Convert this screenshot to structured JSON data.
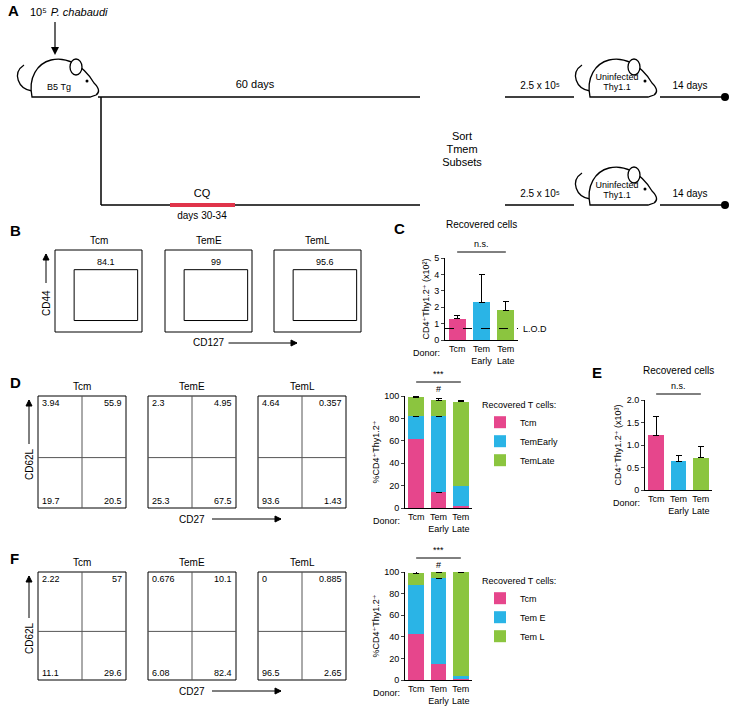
{
  "diagram": {
    "panel_label": "A",
    "dose": "10⁵",
    "parasite": "P. chabaudi",
    "donor": "B5 Tg",
    "untreated_duration": "60 days",
    "treatment": "CQ",
    "treatment_days": "days 30-34",
    "sort_lines": [
      "Sort",
      "Tmem",
      "Subsets"
    ],
    "transfer_dose": "2.5 x 10⁵",
    "recipient_lines": [
      "Uninfected",
      "Thy1.1"
    ],
    "followup": "14 days"
  },
  "chart_data": [
    {
      "type": "flow",
      "panel_label": "B",
      "y_label": "CD44",
      "x_label": "CD127",
      "plots": [
        {
          "title": "Tcm",
          "gate_percent": 84.1
        },
        {
          "title": "TemE",
          "gate_percent": 99
        },
        {
          "title": "TemL",
          "gate_percent": 95.6
        }
      ]
    },
    {
      "type": "bar",
      "panel_label": "C",
      "title": "Recovered cells",
      "y_label": "CD4⁺Thy1.2⁺ (x10²)",
      "x_label": "Donor:",
      "categories": [
        "Tcm",
        "Tem Early",
        "Tem Late"
      ],
      "values": [
        1.3,
        2.3,
        1.8
      ],
      "errors": [
        0.2,
        1.7,
        0.55
      ],
      "colors": [
        "#e6468c",
        "#2ab4e6",
        "#8bc53f"
      ],
      "ylim": [
        0,
        5
      ],
      "yticks": [
        0,
        1,
        2,
        3,
        4,
        5
      ],
      "grid": false,
      "reference_line": {
        "value": 0.7,
        "label": "L.O.D"
      },
      "significance": "n.s."
    },
    {
      "type": "flow",
      "panel_label": "D",
      "y_label": "CD62L",
      "x_label": "CD27",
      "plots": [
        {
          "title": "Tcm",
          "quadrants": {
            "upper_left": 3.94,
            "upper_right": 55.9,
            "lower_left": 19.7,
            "lower_right": 20.5
          }
        },
        {
          "title": "TemE",
          "quadrants": {
            "upper_left": 2.3,
            "upper_right": 4.95,
            "lower_left": 25.3,
            "lower_right": 67.5
          }
        },
        {
          "title": "TemL",
          "quadrants": {
            "upper_left": 4.64,
            "upper_right": 0.357,
            "lower_left": 93.6,
            "lower_right": 1.43
          }
        }
      ]
    },
    {
      "type": "bar",
      "stacked": true,
      "y_label": "%CD4⁺Thy1.2⁺",
      "x_label": "Donor:",
      "categories": [
        "Tcm",
        "Tem Early",
        "Tem Late"
      ],
      "series": [
        {
          "name": "Tcm",
          "color": "#e6468c",
          "values": [
            62,
            14,
            2
          ],
          "errors": [
            0,
            2,
            0
          ]
        },
        {
          "name": "TemEarly",
          "color": "#2ab4e6",
          "values": [
            20,
            68,
            18
          ],
          "errors": [
            0,
            3,
            3
          ]
        },
        {
          "name": "TemLate",
          "color": "#8bc53f",
          "values": [
            17,
            14,
            75
          ],
          "errors": [
            1,
            2,
            1
          ]
        }
      ],
      "ylim": [
        0,
        100
      ],
      "yticks": [
        0,
        20,
        40,
        60,
        80,
        100
      ],
      "grid": false,
      "legend": "right",
      "legend_title": "Recovered T cells:",
      "significance": "***",
      "annotations": [
        {
          "text": "#",
          "category": "Tem Early"
        }
      ]
    },
    {
      "type": "bar",
      "panel_label": "E",
      "title": "Recovered cells",
      "y_label": "CD4⁺Thy1.2⁺ (x10³)",
      "x_label": "Donor:",
      "categories": [
        "Tcm",
        "Tem Early",
        "Tem Late"
      ],
      "values": [
        1.22,
        0.64,
        0.72
      ],
      "errors": [
        0.42,
        0.12,
        0.25
      ],
      "colors": [
        "#e6468c",
        "#2ab4e6",
        "#8bc53f"
      ],
      "ylim": [
        0,
        2
      ],
      "yticks": [
        0,
        0.5,
        {
          "value": 1,
          "label": "1.0"
        },
        1.5,
        {
          "value": 2,
          "label": "2.0"
        }
      ],
      "grid": false,
      "significance": "n.s."
    },
    {
      "type": "flow",
      "panel_label": "F",
      "y_label": "CD62L",
      "x_label": "CD27",
      "plots": [
        {
          "title": "Tcm",
          "quadrants": {
            "upper_left": 2.22,
            "upper_right": 57,
            "lower_left": 11.1,
            "lower_right": 29.6
          }
        },
        {
          "title": "TemE",
          "quadrants": {
            "upper_left": 0.676,
            "upper_right": 10.1,
            "lower_left": 6.08,
            "lower_right": 82.4
          }
        },
        {
          "title": "TemL",
          "quadrants": {
            "upper_left": 0,
            "upper_right": 0.885,
            "lower_left": 96.5,
            "lower_right": 2.65
          }
        }
      ]
    },
    {
      "type": "bar",
      "stacked": true,
      "y_label": "%CD4⁺Thy1.2⁺",
      "x_label": "Donor:",
      "categories": [
        "Tcm",
        "Tem Early",
        "Tem Late"
      ],
      "series": [
        {
          "name": "Tcm",
          "color": "#e6468c",
          "values": [
            43,
            15,
            1
          ],
          "errors": [
            9,
            10,
            0
          ]
        },
        {
          "name": "Tem E",
          "color": "#2ab4e6",
          "values": [
            45,
            79,
            3
          ],
          "errors": [
            0,
            0,
            0
          ]
        },
        {
          "name": "Tem L",
          "color": "#8bc53f",
          "values": [
            11,
            6,
            96
          ],
          "errors": [
            2,
            4,
            1
          ]
        }
      ],
      "ylim": [
        0,
        100
      ],
      "yticks": [
        0,
        20,
        40,
        60,
        80,
        100
      ],
      "grid": false,
      "legend": "right",
      "legend_title": "Recovered T cells:",
      "significance": "***",
      "annotations": [
        {
          "text": "#",
          "category": "Tem Early"
        }
      ]
    }
  ]
}
